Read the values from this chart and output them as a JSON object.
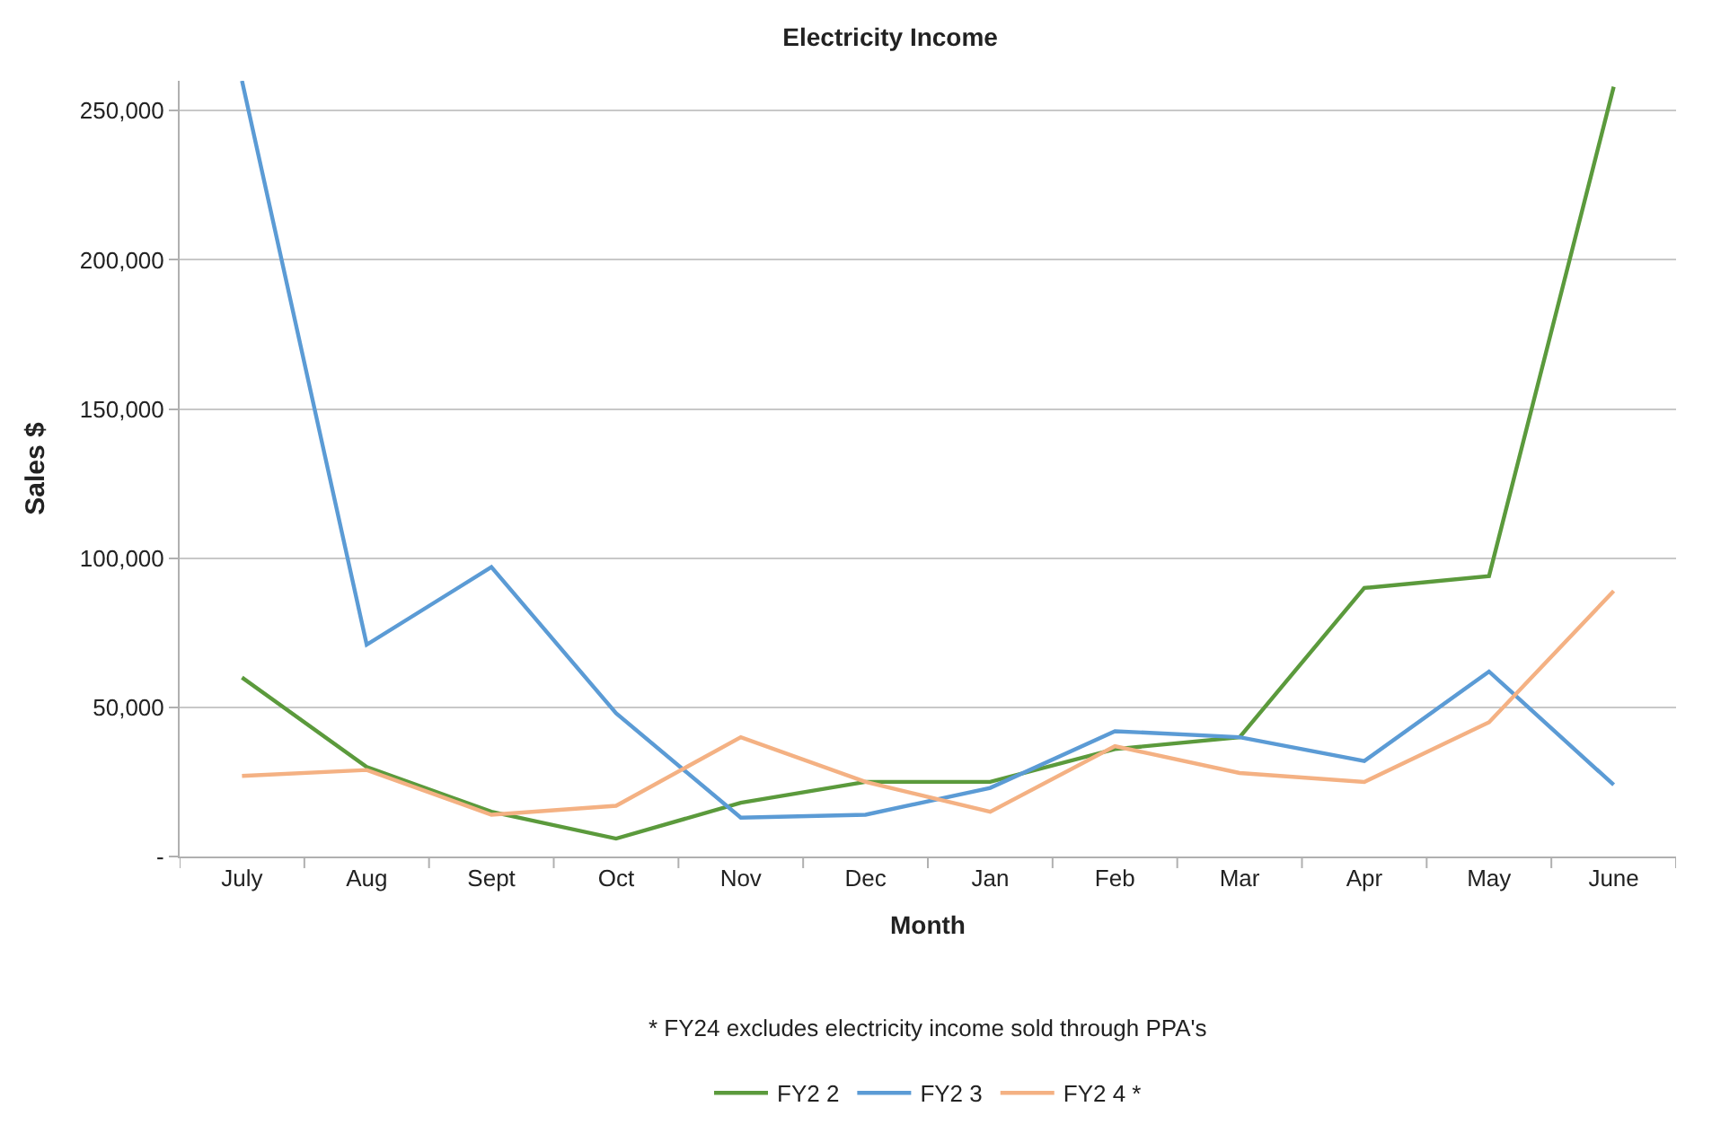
{
  "chart_data": {
    "type": "line",
    "title": "Electricity Income",
    "xlabel": "Month",
    "ylabel": "Sales $",
    "categories": [
      "July",
      "Aug",
      "Sept",
      "Oct",
      "Nov",
      "Dec",
      "Jan",
      "Feb",
      "Mar",
      "Apr",
      "May",
      "June"
    ],
    "series": [
      {
        "name": "FY2 2",
        "color": "#5b9a3c",
        "values": [
          60000,
          30000,
          15000,
          6000,
          18000,
          25000,
          25000,
          36000,
          40000,
          90000,
          94000,
          258000
        ]
      },
      {
        "name": "FY2 3",
        "color": "#5b9bd5",
        "values": [
          260000,
          71000,
          97000,
          48000,
          13000,
          14000,
          23000,
          42000,
          40000,
          32000,
          62000,
          24000
        ]
      },
      {
        "name": "FY2 4 *",
        "color": "#f4b183",
        "values": [
          27000,
          29000,
          14000,
          17000,
          40000,
          25000,
          15000,
          37000,
          28000,
          25000,
          45000,
          89000
        ]
      }
    ],
    "ylim": [
      0,
      260000
    ],
    "yticks": [
      {
        "value": 0,
        "label": "-"
      },
      {
        "value": 50000,
        "label": "50,000"
      },
      {
        "value": 100000,
        "label": "100,000"
      },
      {
        "value": 150000,
        "label": "150,000"
      },
      {
        "value": 200000,
        "label": "200,000"
      },
      {
        "value": 250000,
        "label": "250,000"
      }
    ],
    "grid": "y",
    "legend": "bottom",
    "marker": "none",
    "line_style": "solid",
    "annotations": [
      "* FY24 excludes electricity income sold through PPA's"
    ]
  }
}
